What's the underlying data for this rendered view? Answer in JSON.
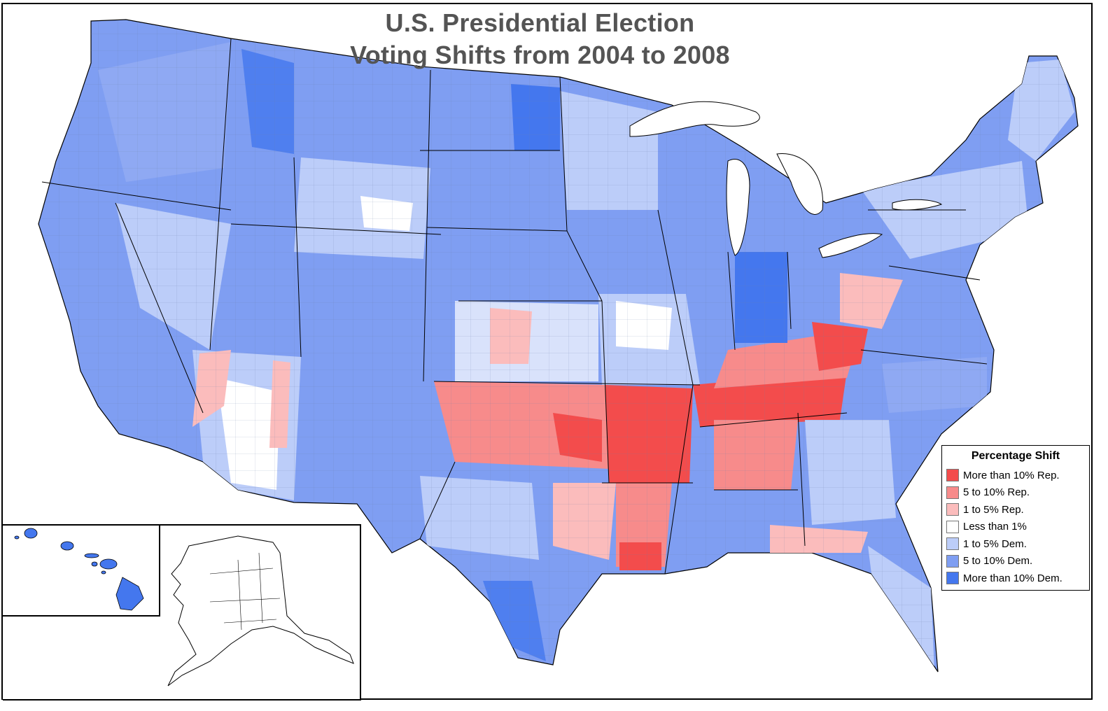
{
  "title": {
    "line1": "U.S. Presidential Election",
    "line2": "Voting Shifts from 2004 to 2008"
  },
  "legend": {
    "title": "Percentage Shift",
    "items": [
      {
        "label": "More than 10% Rep.",
        "color": "#f34c4c"
      },
      {
        "label": "5 to 10% Rep.",
        "color": "#f78b8b"
      },
      {
        "label": "1 to 5% Rep.",
        "color": "#fbbcbc"
      },
      {
        "label": "Less than 1%",
        "color": "#ffffff"
      },
      {
        "label": "1 to 5% Dem.",
        "color": "#bccdf9"
      },
      {
        "label": "5 to 10% Dem.",
        "color": "#7f9ef2"
      },
      {
        "label": "More than 10% Dem.",
        "color": "#4477ee"
      }
    ]
  },
  "colors": {
    "border": "#000000",
    "title_text": "#545454",
    "background": "#ffffff"
  }
}
